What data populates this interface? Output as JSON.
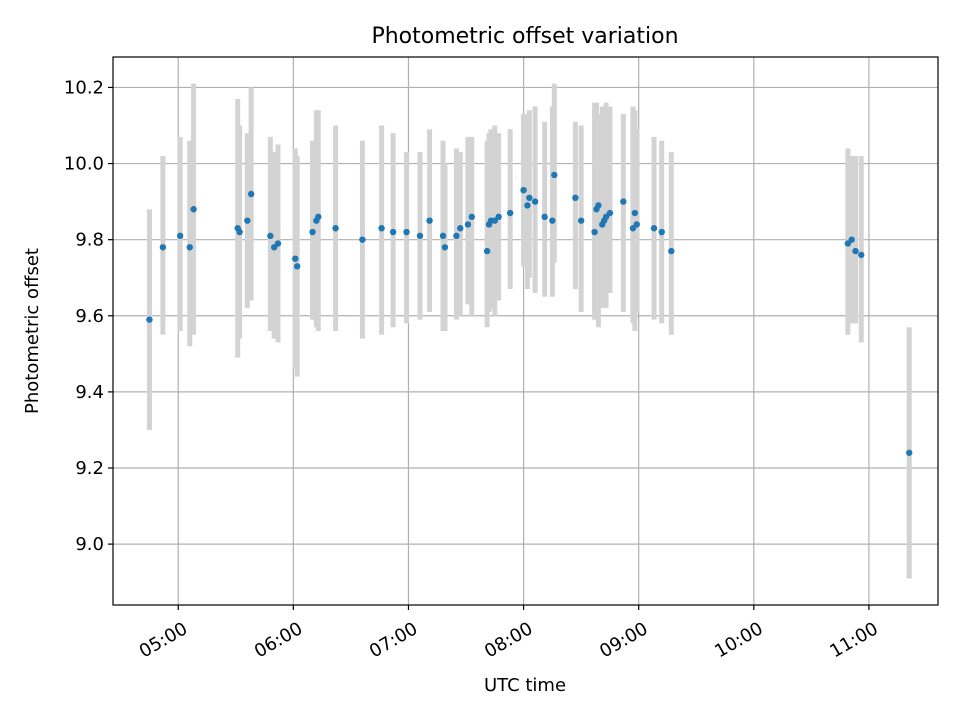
{
  "chart_data": {
    "type": "scatter",
    "title": "Photometric offset variation",
    "xlabel": "UTC time",
    "ylabel": "Photometric offset",
    "xlim": [
      "04:26",
      "11:36"
    ],
    "ylim": [
      8.84,
      10.28
    ],
    "x_ticks": [
      "05:00",
      "06:00",
      "07:00",
      "08:00",
      "09:00",
      "10:00",
      "11:00"
    ],
    "y_ticks": [
      "9.0",
      "9.2",
      "9.4",
      "9.6",
      "9.8",
      "10.0",
      "10.2"
    ],
    "grid": true,
    "colors": {
      "point": "#1f77b4",
      "errorbar": "#d3d3d3",
      "grid": "#b0b0b0"
    },
    "series": [
      {
        "x": [
          "04:45",
          "04:52",
          "05:01",
          "05:06",
          "05:08",
          "05:31",
          "05:32",
          "05:36",
          "05:38",
          "05:48",
          "05:50",
          "05:52",
          "06:01",
          "06:02",
          "06:10",
          "06:12",
          "06:13",
          "06:22",
          "06:36",
          "06:46",
          "06:52",
          "06:59",
          "07:06",
          "07:11",
          "07:18",
          "07:19",
          "07:25",
          "07:27",
          "07:31",
          "07:33",
          "07:41",
          "07:42",
          "07:43",
          "07:45",
          "07:47",
          "07:53",
          "08:00",
          "08:02",
          "08:03",
          "08:06",
          "08:11",
          "08:15",
          "08:16",
          "08:27",
          "08:30",
          "08:37",
          "08:38",
          "08:39",
          "08:41",
          "08:42",
          "08:43",
          "08:45",
          "08:52",
          "08:57",
          "08:58",
          "08:59",
          "09:08",
          "09:12",
          "09:17",
          "10:49",
          "10:51",
          "10:53",
          "10:56",
          "11:21"
        ],
        "y": [
          9.59,
          9.78,
          9.81,
          9.78,
          9.88,
          9.83,
          9.82,
          9.85,
          9.92,
          9.81,
          9.78,
          9.79,
          9.75,
          9.73,
          9.82,
          9.85,
          9.86,
          9.83,
          9.8,
          9.83,
          9.82,
          9.82,
          9.81,
          9.85,
          9.81,
          9.78,
          9.81,
          9.83,
          9.84,
          9.86,
          9.77,
          9.84,
          9.85,
          9.85,
          9.86,
          9.87,
          9.93,
          9.89,
          9.91,
          9.9,
          9.86,
          9.85,
          9.97,
          9.91,
          9.85,
          9.82,
          9.88,
          9.89,
          9.84,
          9.85,
          9.86,
          9.87,
          9.9,
          9.83,
          9.87,
          9.84,
          9.83,
          9.82,
          9.77,
          9.79,
          9.8,
          9.77,
          9.76,
          9.24
        ],
        "err_low": [
          9.3,
          9.55,
          9.56,
          9.52,
          9.55,
          9.49,
          9.54,
          9.62,
          9.64,
          9.56,
          9.54,
          9.53,
          9.46,
          9.44,
          9.59,
          9.57,
          9.56,
          9.56,
          9.54,
          9.55,
          9.57,
          9.58,
          9.59,
          9.61,
          9.56,
          9.56,
          9.59,
          9.6,
          9.63,
          9.6,
          9.57,
          9.61,
          9.62,
          9.6,
          9.64,
          9.67,
          9.73,
          9.67,
          9.7,
          9.66,
          9.65,
          9.65,
          9.74,
          9.67,
          9.61,
          9.59,
          9.6,
          9.57,
          9.62,
          9.64,
          9.62,
          9.66,
          9.61,
          9.58,
          9.56,
          9.61,
          9.59,
          9.58,
          9.55,
          9.55,
          9.58,
          9.58,
          9.53,
          8.91
        ],
        "err_high": [
          9.88,
          10.02,
          10.07,
          10.06,
          10.21,
          10.17,
          10.1,
          10.08,
          10.2,
          10.07,
          10.03,
          10.05,
          10.04,
          10.02,
          10.06,
          10.14,
          10.14,
          10.1,
          10.06,
          10.1,
          10.08,
          10.03,
          10.03,
          10.09,
          10.06,
          10.0,
          10.04,
          10.03,
          10.07,
          10.07,
          10.06,
          10.08,
          10.09,
          10.1,
          10.08,
          10.09,
          10.13,
          10.13,
          10.14,
          10.15,
          10.11,
          10.15,
          10.21,
          10.11,
          10.1,
          10.16,
          10.16,
          10.13,
          10.15,
          10.1,
          10.16,
          10.15,
          10.13,
          10.15,
          10.14,
          10.09,
          10.07,
          10.06,
          10.03,
          10.04,
          10.02,
          10.02,
          10.02,
          9.57
        ]
      }
    ]
  }
}
